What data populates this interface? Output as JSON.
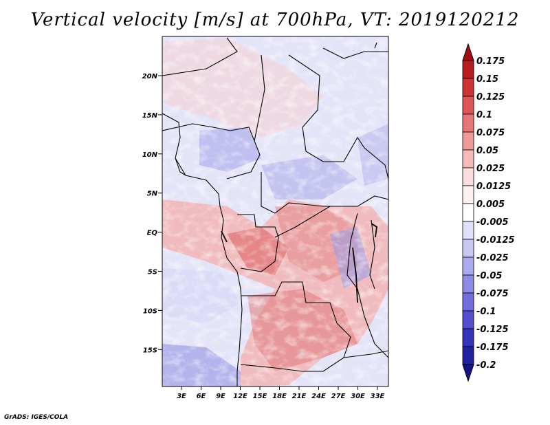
{
  "title": "Vertical velocity [m/s] at 700hPa, VT: 2019120212",
  "credit": "GrADS: IGES/COLA",
  "map": {
    "lat_labels": [
      "20N",
      "15N",
      "10N",
      "5N",
      "EQ",
      "5S",
      "10S",
      "15S"
    ],
    "lon_labels": [
      "3E",
      "6E",
      "9E",
      "12E",
      "15E",
      "18E",
      "21E",
      "24E",
      "27E",
      "30E",
      "33E"
    ]
  },
  "colorbar": {
    "labels": [
      "0.175",
      "0.15",
      "0.125",
      "0.1",
      "0.075",
      "0.05",
      "0.025",
      "0.0125",
      "0.005",
      "-0.005",
      "-0.0125",
      "-0.025",
      "-0.05",
      "-0.075",
      "-0.1",
      "-0.125",
      "-0.175",
      "-0.2"
    ],
    "colors": [
      "#a01010",
      "#b81c1c",
      "#cc3333",
      "#dd5555",
      "#e67777",
      "#ef9999",
      "#f5bbbb",
      "#fadddd",
      "#fff0f0",
      "#ffffff",
      "#e0e0fa",
      "#c8c8f5",
      "#aaaaee",
      "#8c8ce6",
      "#6e6edc",
      "#5050cf",
      "#3333bb",
      "#2020a0",
      "#14148a"
    ]
  }
}
